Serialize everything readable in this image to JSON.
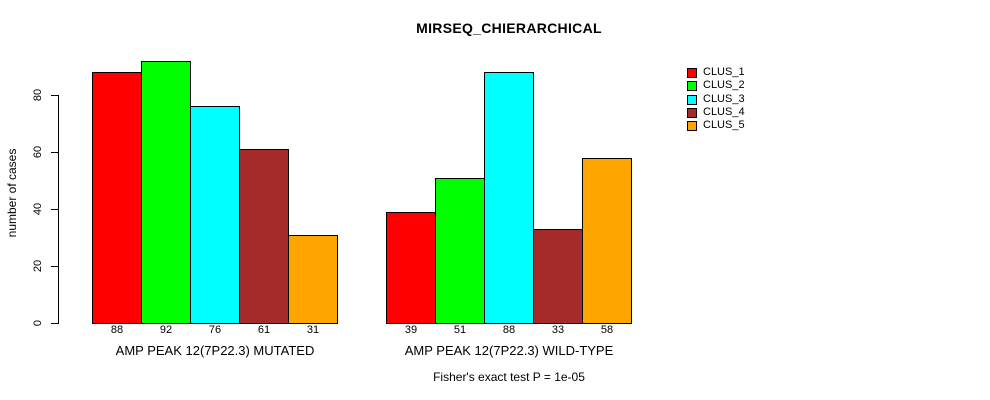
{
  "chart_data": {
    "type": "bar",
    "title": "MIRSEQ_CHIERARCHICAL",
    "ylabel": "number of cases",
    "xlabel": "",
    "footnote": "Fisher's exact test P = 1e-05",
    "legend_position": "right",
    "grid": false,
    "bar_value_labels": true,
    "series": [
      {
        "name": "CLUS_1",
        "color": "#FF0000"
      },
      {
        "name": "CLUS_2",
        "color": "#00FF00"
      },
      {
        "name": "CLUS_3",
        "color": "#00FFFF"
      },
      {
        "name": "CLUS_4",
        "color": "#A52A2A"
      },
      {
        "name": "CLUS_5",
        "color": "#FFA500"
      }
    ],
    "groups": [
      {
        "label": "AMP PEAK 12(7P22.3) MUTATED",
        "values": [
          88,
          92,
          76,
          61,
          31
        ]
      },
      {
        "label": "AMP PEAK 12(7P22.3) WILD-TYPE",
        "values": [
          39,
          51,
          88,
          33,
          58
        ]
      }
    ],
    "yticks": [
      0,
      20,
      40,
      60,
      80
    ],
    "ylim": [
      0,
      92
    ]
  },
  "colors": {
    "background": "#FFFFFF",
    "axis": "#000000",
    "text": "#000000",
    "bar_border": "#000000"
  }
}
